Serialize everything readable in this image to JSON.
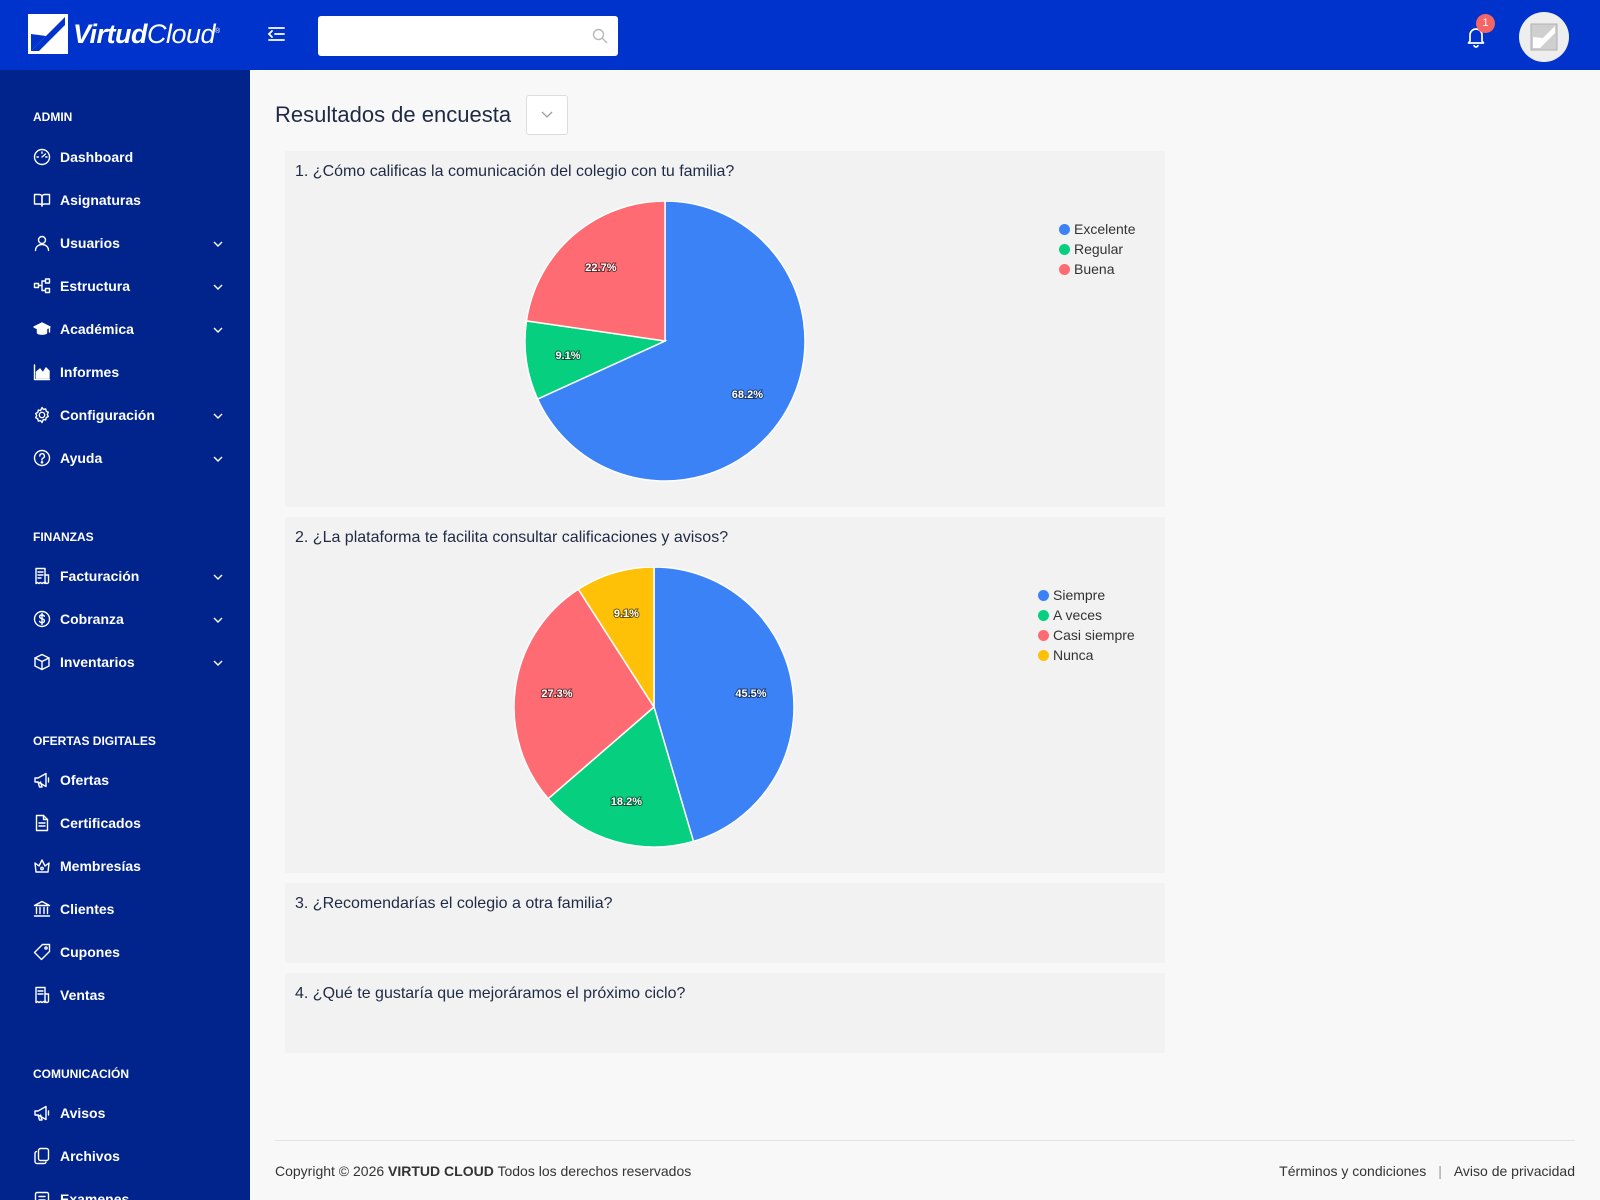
{
  "topbar": {
    "logo_bold": "Virtud",
    "logo_light": "Cloud",
    "logo_reg": "®",
    "search_value": "",
    "notification_count": "1"
  },
  "sidebar": {
    "sections": [
      {
        "title": "ADMIN",
        "items": [
          {
            "label": "Dashboard",
            "icon": "dashboard-icon",
            "expandable": false
          },
          {
            "label": "Asignaturas",
            "icon": "book-icon",
            "expandable": false
          },
          {
            "label": "Usuarios",
            "icon": "user-icon",
            "expandable": true
          },
          {
            "label": "Estructura",
            "icon": "structure-icon",
            "expandable": true
          },
          {
            "label": "Académica",
            "icon": "graduation-cap-icon",
            "expandable": true
          },
          {
            "label": "Informes",
            "icon": "chart-icon",
            "expandable": false
          },
          {
            "label": "Configuración",
            "icon": "gear-icon",
            "expandable": true
          },
          {
            "label": "Ayuda",
            "icon": "help-icon",
            "expandable": true
          }
        ]
      },
      {
        "title": "FINANZAS",
        "items": [
          {
            "label": "Facturación",
            "icon": "invoice-icon",
            "expandable": true
          },
          {
            "label": "Cobranza",
            "icon": "dollar-icon",
            "expandable": true
          },
          {
            "label": "Inventarios",
            "icon": "box-icon",
            "expandable": true
          }
        ]
      },
      {
        "title": "OFERTAS DIGITALES",
        "items": [
          {
            "label": "Ofertas",
            "icon": "megaphone-icon",
            "expandable": false
          },
          {
            "label": "Certificados",
            "icon": "document-icon",
            "expandable": false
          },
          {
            "label": "Membresías",
            "icon": "crown-icon",
            "expandable": false
          },
          {
            "label": "Clientes",
            "icon": "bank-icon",
            "expandable": false
          },
          {
            "label": "Cupones",
            "icon": "tag-icon",
            "expandable": false
          },
          {
            "label": "Ventas",
            "icon": "receipt-icon",
            "expandable": false
          }
        ]
      },
      {
        "title": "COMUNICACIÓN",
        "items": [
          {
            "label": "Avisos",
            "icon": "megaphone-icon",
            "expandable": false
          },
          {
            "label": "Archivos",
            "icon": "files-icon",
            "expandable": false
          },
          {
            "label": "Examenes",
            "icon": "exam-icon",
            "expandable": false
          }
        ]
      }
    ]
  },
  "main": {
    "title": "Resultados de encuesta",
    "questions": [
      {
        "title": "1. ¿Cómo calificas la comunicación del colegio con tu familia?"
      },
      {
        "title": "2. ¿La plataforma te facilita consultar calificaciones y avisos?"
      },
      {
        "title": "3. ¿Recomendarías el colegio a otra familia?"
      },
      {
        "title": "4. ¿Qué te gustaría que mejoráramos el próximo ciclo?"
      }
    ]
  },
  "chart_data": [
    {
      "type": "pie",
      "title": "1. ¿Cómo calificas la comunicación del colegio con tu familia?",
      "categories": [
        "Excelente",
        "Regular",
        "Buena"
      ],
      "values": [
        68.2,
        9.1,
        22.7
      ],
      "labels": [
        "68.2%",
        "9.1%",
        "22.7%"
      ],
      "colors": [
        "#3b82f6",
        "#06d07f",
        "#ff6b72"
      ],
      "legend": "top-right"
    },
    {
      "type": "pie",
      "title": "2. ¿La plataforma te facilita consultar calificaciones y avisos?",
      "categories": [
        "Siempre",
        "A veces",
        "Casi siempre",
        "Nunca"
      ],
      "values": [
        45.5,
        18.2,
        27.3,
        9.1
      ],
      "labels": [
        "45.5%",
        "18.2%",
        "27.3%",
        "9.1%"
      ],
      "colors": [
        "#3b82f6",
        "#06d07f",
        "#ff6b72",
        "#ffc107"
      ],
      "legend": "top-right"
    }
  ],
  "footer": {
    "copyright_prefix": "Copyright © 2026",
    "brand": "VIRTUD CLOUD",
    "rights": "Todos los derechos reservados",
    "terms": "Términos y condiciones",
    "separator": "|",
    "privacy": "Aviso de privacidad"
  }
}
